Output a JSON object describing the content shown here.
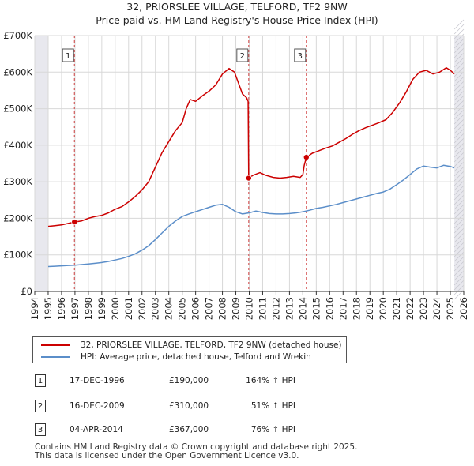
{
  "chart_data": {
    "type": "line",
    "title": "32, PRIORSLEE VILLAGE, TELFORD, TF2 9NW",
    "subtitle": "Price paid vs. HM Land Registry's House Price Index (HPI)",
    "xlim": [
      1994,
      2026
    ],
    "ylim": [
      0,
      700000
    ],
    "x_ticks": [
      "1994",
      "1995",
      "1996",
      "1997",
      "1998",
      "1999",
      "2000",
      "2001",
      "2002",
      "2003",
      "2004",
      "2005",
      "2006",
      "2007",
      "2008",
      "2009",
      "2010",
      "2011",
      "2012",
      "2013",
      "2014",
      "2015",
      "2016",
      "2017",
      "2018",
      "2019",
      "2020",
      "2021",
      "2022",
      "2023",
      "2024",
      "2025",
      "2026"
    ],
    "y_ticks": [
      {
        "value": 0,
        "label": "£0"
      },
      {
        "value": 100000,
        "label": "£100K"
      },
      {
        "value": 200000,
        "label": "£200K"
      },
      {
        "value": 300000,
        "label": "£300K"
      },
      {
        "value": 400000,
        "label": "£400K"
      },
      {
        "value": 500000,
        "label": "£500K"
      },
      {
        "value": 600000,
        "label": "£600K"
      },
      {
        "value": 700000,
        "label": "£700K"
      }
    ],
    "data_start_year": 1995.0,
    "data_end_year": 2025.3,
    "series": [
      {
        "name": "32, PRIORSLEE VILLAGE, TELFORD, TF2 9NW (detached house)",
        "color": "#cc0000",
        "points": [
          [
            1995.0,
            178000
          ],
          [
            1995.5,
            180000
          ],
          [
            1996.0,
            182000
          ],
          [
            1996.5,
            186000
          ],
          [
            1996.96,
            190000
          ],
          [
            1997.5,
            193000
          ],
          [
            1998.0,
            200000
          ],
          [
            1998.5,
            205000
          ],
          [
            1999.0,
            208000
          ],
          [
            1999.5,
            215000
          ],
          [
            2000.0,
            225000
          ],
          [
            2000.5,
            232000
          ],
          [
            2001.0,
            245000
          ],
          [
            2001.5,
            260000
          ],
          [
            2002.0,
            278000
          ],
          [
            2002.5,
            300000
          ],
          [
            2003.0,
            340000
          ],
          [
            2003.5,
            380000
          ],
          [
            2004.0,
            410000
          ],
          [
            2004.5,
            440000
          ],
          [
            2005.0,
            462000
          ],
          [
            2005.3,
            500000
          ],
          [
            2005.6,
            525000
          ],
          [
            2006.0,
            520000
          ],
          [
            2006.5,
            535000
          ],
          [
            2007.0,
            548000
          ],
          [
            2007.5,
            565000
          ],
          [
            2008.0,
            595000
          ],
          [
            2008.5,
            610000
          ],
          [
            2008.9,
            600000
          ],
          [
            2009.2,
            570000
          ],
          [
            2009.5,
            540000
          ],
          [
            2009.8,
            530000
          ],
          [
            2009.92,
            520000
          ],
          [
            2009.96,
            310000
          ],
          [
            2010.3,
            318000
          ],
          [
            2010.8,
            325000
          ],
          [
            2011.2,
            318000
          ],
          [
            2011.8,
            312000
          ],
          [
            2012.3,
            310000
          ],
          [
            2012.8,
            312000
          ],
          [
            2013.3,
            315000
          ],
          [
            2013.8,
            312000
          ],
          [
            2014.0,
            320000
          ],
          [
            2014.1,
            345000
          ],
          [
            2014.26,
            367000
          ],
          [
            2014.7,
            378000
          ],
          [
            2015.2,
            385000
          ],
          [
            2015.7,
            392000
          ],
          [
            2016.2,
            398000
          ],
          [
            2016.7,
            408000
          ],
          [
            2017.2,
            418000
          ],
          [
            2017.7,
            430000
          ],
          [
            2018.2,
            440000
          ],
          [
            2018.7,
            448000
          ],
          [
            2019.2,
            455000
          ],
          [
            2019.7,
            462000
          ],
          [
            2020.2,
            470000
          ],
          [
            2020.7,
            490000
          ],
          [
            2021.2,
            515000
          ],
          [
            2021.7,
            545000
          ],
          [
            2022.2,
            580000
          ],
          [
            2022.7,
            600000
          ],
          [
            2023.2,
            605000
          ],
          [
            2023.7,
            595000
          ],
          [
            2024.2,
            600000
          ],
          [
            2024.7,
            612000
          ],
          [
            2025.0,
            605000
          ],
          [
            2025.3,
            595000
          ]
        ]
      },
      {
        "name": "HPI: Average price, detached house, Telford and Wrekin",
        "color": "#5b8ec9",
        "points": [
          [
            1995.0,
            68000
          ],
          [
            1995.5,
            69000
          ],
          [
            1996.0,
            70000
          ],
          [
            1996.5,
            71000
          ],
          [
            1997.0,
            72000
          ],
          [
            1997.5,
            73500
          ],
          [
            1998.0,
            75000
          ],
          [
            1998.5,
            77000
          ],
          [
            1999.0,
            79000
          ],
          [
            1999.5,
            82000
          ],
          [
            2000.0,
            86000
          ],
          [
            2000.5,
            90000
          ],
          [
            2001.0,
            96000
          ],
          [
            2001.5,
            103000
          ],
          [
            2002.0,
            113000
          ],
          [
            2002.5,
            125000
          ],
          [
            2003.0,
            142000
          ],
          [
            2003.5,
            160000
          ],
          [
            2004.0,
            178000
          ],
          [
            2004.5,
            193000
          ],
          [
            2005.0,
            205000
          ],
          [
            2005.5,
            212000
          ],
          [
            2006.0,
            218000
          ],
          [
            2006.5,
            224000
          ],
          [
            2007.0,
            230000
          ],
          [
            2007.5,
            236000
          ],
          [
            2008.0,
            238000
          ],
          [
            2008.5,
            230000
          ],
          [
            2009.0,
            218000
          ],
          [
            2009.5,
            212000
          ],
          [
            2010.0,
            215000
          ],
          [
            2010.5,
            220000
          ],
          [
            2011.0,
            216000
          ],
          [
            2011.5,
            213000
          ],
          [
            2012.0,
            212000
          ],
          [
            2012.5,
            212000
          ],
          [
            2013.0,
            213000
          ],
          [
            2013.5,
            215000
          ],
          [
            2014.0,
            218000
          ],
          [
            2014.5,
            222000
          ],
          [
            2015.0,
            227000
          ],
          [
            2015.5,
            230000
          ],
          [
            2016.0,
            234000
          ],
          [
            2016.5,
            238000
          ],
          [
            2017.0,
            243000
          ],
          [
            2017.5,
            248000
          ],
          [
            2018.0,
            253000
          ],
          [
            2018.5,
            258000
          ],
          [
            2019.0,
            263000
          ],
          [
            2019.5,
            268000
          ],
          [
            2020.0,
            272000
          ],
          [
            2020.5,
            280000
          ],
          [
            2021.0,
            292000
          ],
          [
            2021.5,
            305000
          ],
          [
            2022.0,
            320000
          ],
          [
            2022.5,
            335000
          ],
          [
            2023.0,
            343000
          ],
          [
            2023.5,
            340000
          ],
          [
            2024.0,
            338000
          ],
          [
            2024.5,
            345000
          ],
          [
            2025.0,
            342000
          ],
          [
            2025.3,
            338000
          ]
        ]
      }
    ],
    "markers": [
      {
        "label": "1",
        "x": 1996.96,
        "y": 190000
      },
      {
        "label": "2",
        "x": 2009.96,
        "y": 310000
      },
      {
        "label": "3",
        "x": 2014.26,
        "y": 367000
      }
    ]
  },
  "legend": {
    "property_label": "32, PRIORSLEE VILLAGE, TELFORD, TF2 9NW (detached house)",
    "hpi_label": "HPI: Average price, detached house, Telford and Wrekin",
    "property_color": "#cc0000",
    "hpi_color": "#5b8ec9"
  },
  "sales": [
    {
      "num": "1",
      "date": "17-DEC-1996",
      "price": "£190,000",
      "hpi": "164% ↑ HPI"
    },
    {
      "num": "2",
      "date": "16-DEC-2009",
      "price": "£310,000",
      "hpi": "51% ↑ HPI"
    },
    {
      "num": "3",
      "date": "04-APR-2014",
      "price": "£367,000",
      "hpi": "76% ↑ HPI"
    }
  ],
  "footer": {
    "line1": "Contains HM Land Registry data © Crown copyright and database right 2025.",
    "line2": "This data is licensed under the Open Government Licence v3.0."
  }
}
